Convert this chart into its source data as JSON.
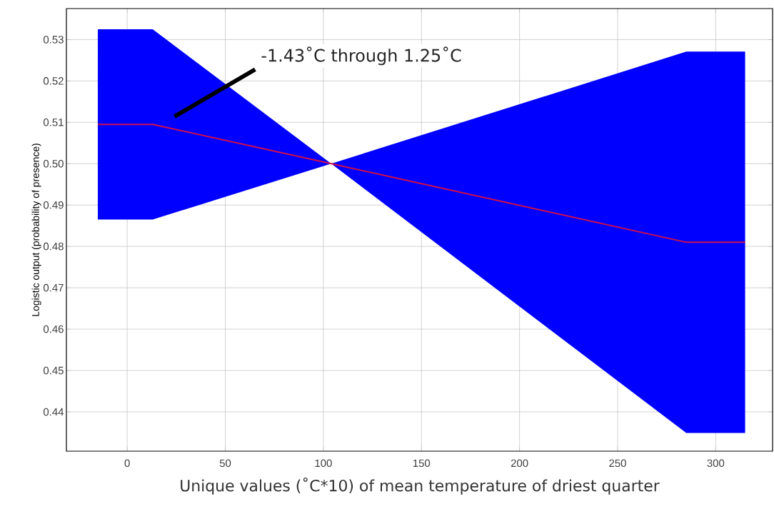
{
  "chart_data": {
    "type": "line",
    "xlabel": "Unique values (˚C*10) of mean temperature of driest quarter",
    "ylabel": "Logistic output (probability of presence)",
    "annotations": [
      "-1.43˚C through 1.25˚C"
    ],
    "series": [
      {
        "color": "#d0104a",
        "x": [
          -15,
          13,
          104,
          285,
          315
        ],
        "values": [
          0.5095,
          0.5095,
          0.5,
          0.481,
          0.481
        ],
        "lower": [
          0.4865,
          0.4865,
          0.5,
          0.4349,
          0.4349
        ],
        "upper": [
          0.5325,
          0.5325,
          0.5,
          0.5271,
          0.5271
        ]
      }
    ],
    "xlim": [
      -31,
      329
    ],
    "ylim": [
      0.4305,
      0.5375
    ],
    "xticks": [
      0,
      50,
      100,
      150,
      200,
      250,
      300
    ],
    "yticks": [
      0.44,
      0.45,
      0.46,
      0.47,
      0.48,
      0.49,
      {
        "value": 0.5,
        "label": "0.50"
      },
      0.51,
      0.52,
      0.53
    ],
    "grid": true,
    "legend": false,
    "marker": "none",
    "line_style": "solid"
  }
}
